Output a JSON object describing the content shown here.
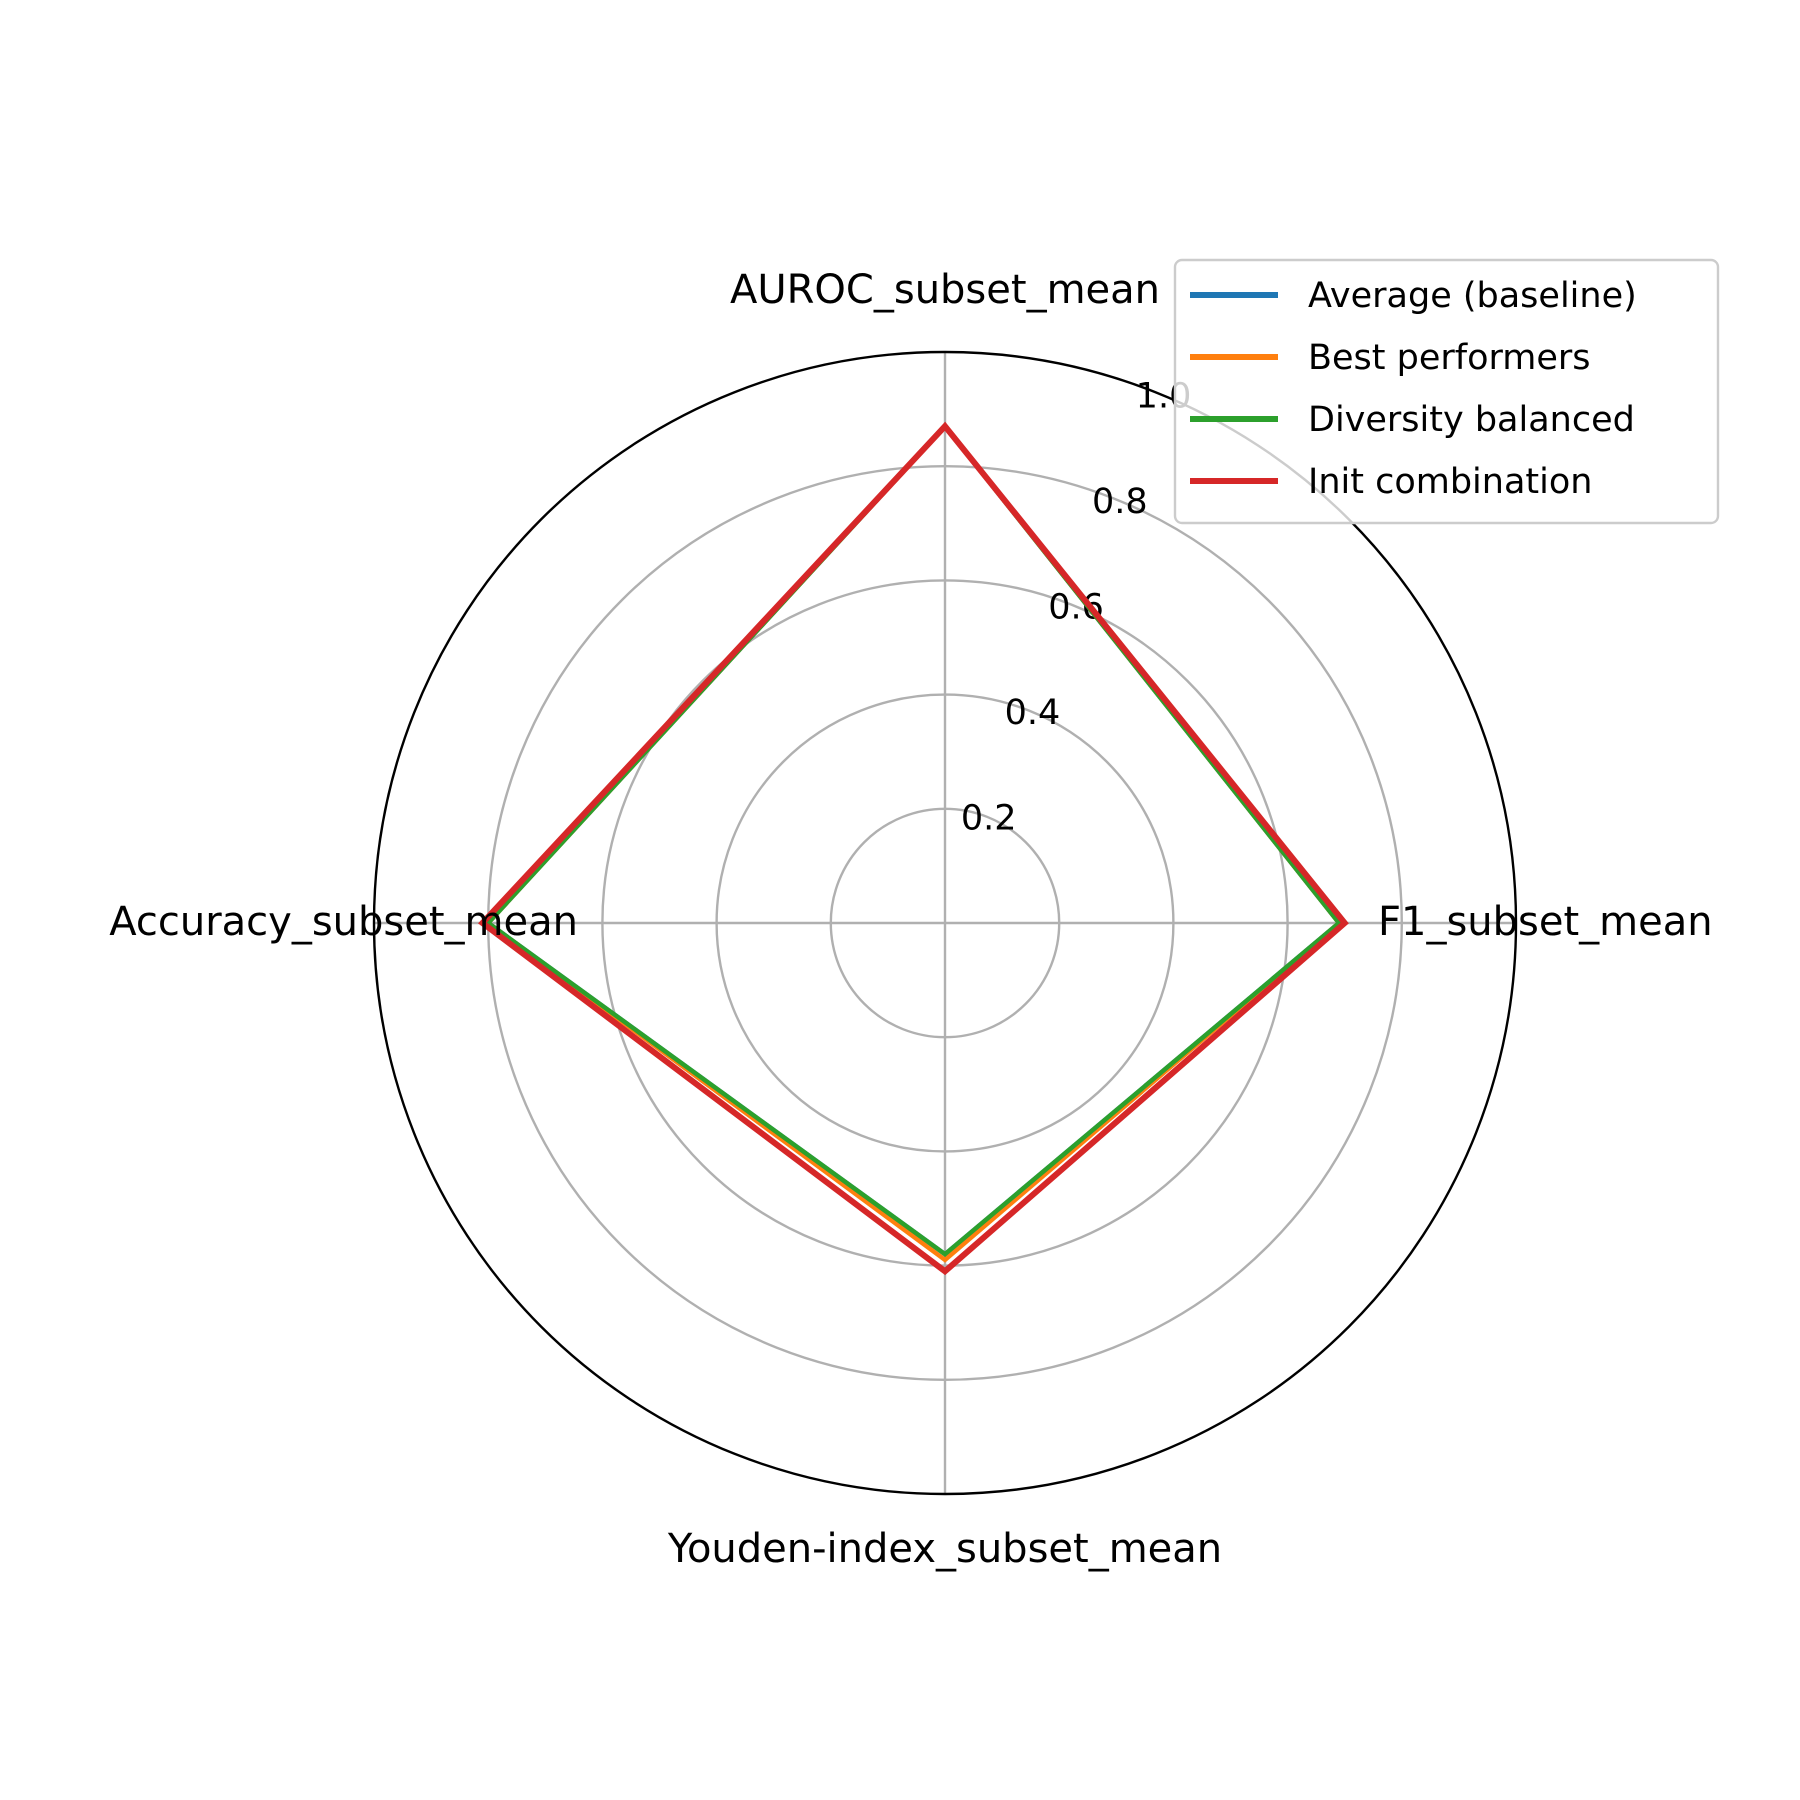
{
  "chart_data": {
    "type": "radar",
    "axes": [
      "AUROC_subset_mean",
      "F1_subset_mean",
      "Youden-index_subset_mean",
      "Accuracy_subset_mean"
    ],
    "rlim": [
      0,
      1.0
    ],
    "rticks": [
      "0.2",
      "0.4",
      "0.6",
      "0.8",
      "1.0"
    ],
    "rtick_values": [
      0.2,
      0.4,
      0.6,
      0.8,
      1.0
    ],
    "grid": true,
    "legend_position": "top-right",
    "series": [
      {
        "name": "Average (baseline)",
        "color": "#1f77b4",
        "values": [
          0.87,
          0.69,
          0.58,
          0.8
        ]
      },
      {
        "name": "Best performers",
        "color": "#ff7f0e",
        "values": [
          0.87,
          0.69,
          0.59,
          0.8
        ]
      },
      {
        "name": "Diversity balanced",
        "color": "#2ca02c",
        "values": [
          0.87,
          0.69,
          0.58,
          0.8
        ]
      },
      {
        "name": "Init combination",
        "color": "#d62728",
        "values": [
          0.87,
          0.7,
          0.61,
          0.81
        ]
      }
    ]
  }
}
